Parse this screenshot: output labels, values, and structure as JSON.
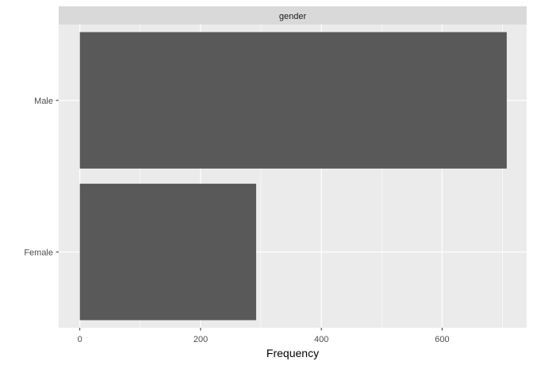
{
  "chart_data": {
    "type": "bar",
    "orientation": "horizontal",
    "facet_label": "gender",
    "categories": [
      "Female",
      "Male"
    ],
    "values": [
      292,
      707
    ],
    "xlabel": "Frequency",
    "ylabel": "",
    "xlim": [
      -35,
      740
    ],
    "x_ticks": [
      0,
      200,
      400,
      600
    ],
    "x_minor_ticks": [
      100,
      300,
      500,
      700
    ],
    "grid": true,
    "colors": {
      "bar": "#595959",
      "panel_bg": "#ebebeb",
      "strip_bg": "#d9d9d9",
      "grid": "#ffffff"
    }
  }
}
